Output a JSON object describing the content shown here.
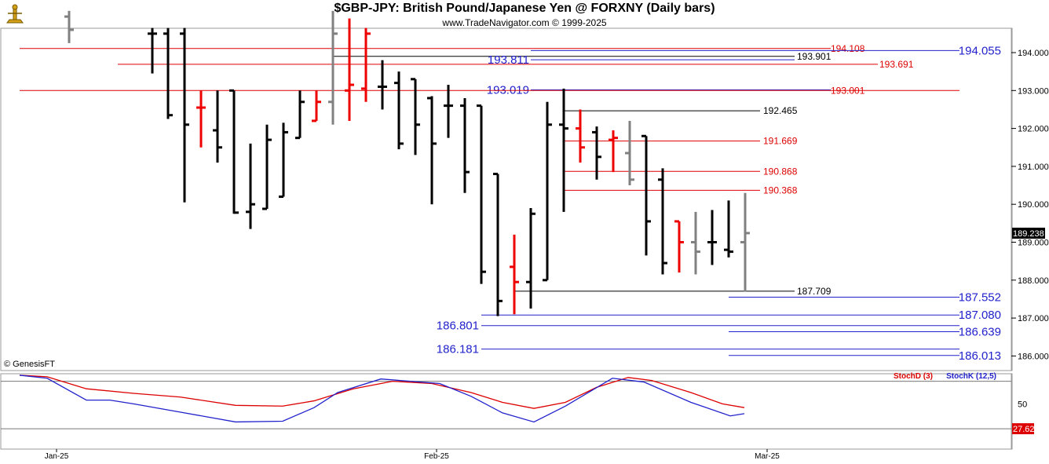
{
  "header": {
    "title": "$GBP-JPY:  British Pound/Japanese Yen @ FORXNY  (Daily bars)",
    "subtitle": "www.TradeNavigator.com © 1999-2025",
    "copyright": "© GenesisFT"
  },
  "colors": {
    "up": "#000000",
    "down": "#ee0000",
    "neutral": "#808080",
    "blue": "#2222cc",
    "red": "#dd0000",
    "black": "#000000",
    "grid": "#888888"
  },
  "chart_data": [
    {
      "type": "bar",
      "subtype": "ohlc",
      "title": "$GBP-JPY:  British Pound/Japanese Yen @ FORXNY  (Daily bars)",
      "ylim": [
        185.6,
        195.1
      ],
      "y_ticks": [
        "194.000",
        "193.000",
        "192.000",
        "191.000",
        "190.000",
        "189.000",
        "188.000",
        "187.000",
        "186.000"
      ],
      "x_ticks": [
        "Jan-25",
        "Feb-25",
        "Mar-25"
      ],
      "last_price": "189.238",
      "bars": [
        {
          "x": 88,
          "o": 194.95,
          "h": 195.1,
          "l": 194.25,
          "c": 194.6,
          "col": "neutral"
        },
        {
          "x": 194,
          "o": 194.5,
          "h": 194.65,
          "l": 193.45,
          "c": 194.5,
          "col": "up"
        },
        {
          "x": 214,
          "o": 194.5,
          "h": 194.65,
          "l": 192.25,
          "c": 192.35,
          "col": "up"
        },
        {
          "x": 235,
          "o": 194.5,
          "h": 194.65,
          "l": 190.05,
          "c": 192.1,
          "col": "up"
        },
        {
          "x": 256,
          "o": 192.55,
          "h": 193.0,
          "l": 191.5,
          "c": 192.55,
          "col": "down"
        },
        {
          "x": 277,
          "o": 191.95,
          "h": 193.0,
          "l": 191.1,
          "c": 191.5,
          "col": "up"
        },
        {
          "x": 298,
          "o": 193.0,
          "h": 193.0,
          "l": 189.75,
          "c": 189.78,
          "col": "up"
        },
        {
          "x": 319,
          "o": 189.8,
          "h": 191.6,
          "l": 189.35,
          "c": 190.0,
          "col": "up"
        },
        {
          "x": 340,
          "o": 189.88,
          "h": 192.1,
          "l": 189.88,
          "c": 191.7,
          "col": "up"
        },
        {
          "x": 361,
          "o": 190.2,
          "h": 192.15,
          "l": 190.2,
          "c": 191.9,
          "col": "up"
        },
        {
          "x": 382,
          "o": 191.75,
          "h": 193.0,
          "l": 191.75,
          "c": 192.7,
          "col": "up"
        },
        {
          "x": 403,
          "o": 192.2,
          "h": 193.0,
          "l": 192.2,
          "c": 192.7,
          "col": "down"
        },
        {
          "x": 424,
          "o": 192.7,
          "h": 195.1,
          "l": 192.1,
          "c": 194.5,
          "col": "neutral"
        },
        {
          "x": 445,
          "o": 193.0,
          "h": 194.9,
          "l": 192.2,
          "c": 193.15,
          "col": "down"
        },
        {
          "x": 466,
          "o": 193.05,
          "h": 194.65,
          "l": 192.7,
          "c": 194.5,
          "col": "down"
        },
        {
          "x": 487,
          "o": 193.1,
          "h": 193.8,
          "l": 192.5,
          "c": 193.1,
          "col": "up"
        },
        {
          "x": 508,
          "o": 193.2,
          "h": 193.5,
          "l": 191.45,
          "c": 191.6,
          "col": "up"
        },
        {
          "x": 529,
          "o": 193.3,
          "h": 193.3,
          "l": 191.3,
          "c": 192.1,
          "col": "up"
        },
        {
          "x": 550,
          "o": 192.8,
          "h": 192.85,
          "l": 190.0,
          "c": 191.6,
          "col": "up"
        },
        {
          "x": 571,
          "o": 192.6,
          "h": 193.15,
          "l": 191.75,
          "c": 192.6,
          "col": "up"
        },
        {
          "x": 592,
          "o": 192.6,
          "h": 192.8,
          "l": 190.3,
          "c": 190.85,
          "col": "up"
        },
        {
          "x": 613,
          "o": 192.6,
          "h": 192.6,
          "l": 187.9,
          "c": 188.22,
          "col": "up"
        },
        {
          "x": 634,
          "o": 190.8,
          "h": 190.8,
          "l": 187.05,
          "c": 187.45,
          "col": "up"
        },
        {
          "x": 655,
          "o": 188.35,
          "h": 189.2,
          "l": 187.1,
          "c": 187.95,
          "col": "down"
        },
        {
          "x": 676,
          "o": 187.95,
          "h": 189.9,
          "l": 187.25,
          "c": 189.75,
          "col": "up"
        },
        {
          "x": 697,
          "o": 188.0,
          "h": 192.7,
          "l": 188.0,
          "c": 192.1,
          "col": "up"
        },
        {
          "x": 718,
          "o": 192.1,
          "h": 193.05,
          "l": 189.8,
          "c": 192.0,
          "col": "up"
        },
        {
          "x": 739,
          "o": 192.0,
          "h": 192.5,
          "l": 191.1,
          "c": 191.5,
          "col": "down"
        },
        {
          "x": 760,
          "o": 191.9,
          "h": 192.05,
          "l": 190.65,
          "c": 191.25,
          "col": "up"
        },
        {
          "x": 781,
          "o": 191.7,
          "h": 191.95,
          "l": 190.85,
          "c": 191.75,
          "col": "down"
        },
        {
          "x": 802,
          "o": 191.35,
          "h": 192.2,
          "l": 190.5,
          "c": 190.65,
          "col": "neutral"
        },
        {
          "x": 823,
          "o": 191.8,
          "h": 191.8,
          "l": 188.65,
          "c": 189.55,
          "col": "up"
        },
        {
          "x": 844,
          "o": 190.65,
          "h": 190.95,
          "l": 188.15,
          "c": 188.45,
          "col": "up"
        },
        {
          "x": 865,
          "o": 189.55,
          "h": 189.55,
          "l": 188.2,
          "c": 189.0,
          "col": "down"
        },
        {
          "x": 886,
          "o": 189.0,
          "h": 189.8,
          "l": 188.15,
          "c": 188.75,
          "col": "neutral"
        },
        {
          "x": 907,
          "o": 189.0,
          "h": 189.85,
          "l": 188.4,
          "c": 189.0,
          "col": "up"
        },
        {
          "x": 928,
          "o": 188.8,
          "h": 190.1,
          "l": 188.6,
          "c": 188.75,
          "col": "up"
        },
        {
          "x": 949,
          "o": 189.0,
          "h": 190.3,
          "l": 187.7,
          "c": 189.24,
          "col": "neutral"
        }
      ],
      "levels": [
        {
          "value": 194.108,
          "label": "194.108",
          "x1": 25,
          "x2": 1058,
          "color": "red",
          "lx": 1058,
          "anchor": "start",
          "size": 12
        },
        {
          "value": 194.055,
          "label": "194.055",
          "x1": 676,
          "x2": 1222,
          "color": "blue",
          "lx": 1277,
          "anchor": "end",
          "size": 15
        },
        {
          "value": 193.901,
          "label": "193.901",
          "x1": 424,
          "x2": 1012,
          "color": "black",
          "lx": 1015,
          "anchor": "start",
          "size": 12
        },
        {
          "value": 193.811,
          "label": "193.811",
          "x1": 676,
          "x2": 1012,
          "color": "blue",
          "lx": 676,
          "anchor": "end",
          "size": 15
        },
        {
          "value": 193.691,
          "label": "193.691",
          "x1": 150,
          "x2": 1118,
          "color": "red",
          "lx": 1120,
          "anchor": "start",
          "size": 12
        },
        {
          "value": 193.019,
          "label": "193.019",
          "x1": 676,
          "x2": 1058,
          "color": "blue",
          "lx": 676,
          "anchor": "end",
          "size": 15
        },
        {
          "value": 193.001,
          "label": "193.001",
          "x1": 25,
          "x2": 1222,
          "color": "red",
          "lx": 1058,
          "anchor": "start",
          "size": 12
        },
        {
          "value": 192.465,
          "label": "192.465",
          "x1": 718,
          "x2": 968,
          "color": "black",
          "lx": 972,
          "anchor": "start",
          "size": 12
        },
        {
          "value": 191.669,
          "label": "191.669",
          "x1": 718,
          "x2": 968,
          "color": "red",
          "lx": 972,
          "anchor": "start",
          "size": 12
        },
        {
          "value": 190.868,
          "label": "190.868",
          "x1": 718,
          "x2": 968,
          "color": "red",
          "lx": 972,
          "anchor": "start",
          "size": 12
        },
        {
          "value": 190.368,
          "label": "190.368",
          "x1": 718,
          "x2": 968,
          "color": "red",
          "lx": 972,
          "anchor": "start",
          "size": 12
        },
        {
          "value": 187.709,
          "label": "187.709",
          "x1": 655,
          "x2": 1012,
          "color": "black",
          "lx": 1015,
          "anchor": "start",
          "size": 12
        },
        {
          "value": 187.552,
          "label": "187.552",
          "x1": 928,
          "x2": 1222,
          "color": "blue",
          "lx": 1277,
          "anchor": "end",
          "size": 15
        },
        {
          "value": 187.08,
          "label": "187.080",
          "x1": 613,
          "x2": 1222,
          "color": "blue",
          "lx": 1277,
          "anchor": "end",
          "size": 15
        },
        {
          "value": 186.801,
          "label": "186.801",
          "x1": 613,
          "x2": 1222,
          "color": "blue",
          "lx": 612,
          "anchor": "end",
          "size": 15
        },
        {
          "value": 186.639,
          "label": "186.639",
          "x1": 928,
          "x2": 1222,
          "color": "blue",
          "lx": 1277,
          "anchor": "end",
          "size": 15
        },
        {
          "value": 186.181,
          "label": "186.181",
          "x1": 613,
          "x2": 1222,
          "color": "blue",
          "lx": 612,
          "anchor": "end",
          "size": 15
        },
        {
          "value": 186.013,
          "label": "186.013",
          "x1": 928,
          "x2": 1222,
          "color": "blue",
          "lx": 1277,
          "anchor": "end",
          "size": 15
        }
      ]
    },
    {
      "type": "line",
      "series": [
        {
          "name": "StochD (3)",
          "color": "red",
          "points": [
            [
              25,
              98
            ],
            [
              60,
              96
            ],
            [
              110,
              80
            ],
            [
              170,
              74
            ],
            [
              230,
              69
            ],
            [
              300,
              58
            ],
            [
              360,
              57
            ],
            [
              400,
              64
            ],
            [
              450,
              80
            ],
            [
              500,
              90
            ],
            [
              550,
              87
            ],
            [
              600,
              75
            ],
            [
              640,
              62
            ],
            [
              680,
              54
            ],
            [
              720,
              62
            ],
            [
              760,
              82
            ],
            [
              800,
              95
            ],
            [
              830,
              91
            ],
            [
              880,
              75
            ],
            [
              920,
              60
            ],
            [
              948,
              55
            ]
          ]
        },
        {
          "name": "StochK (12,5)",
          "color": "blue",
          "points": [
            [
              25,
              98
            ],
            [
              60,
              94
            ],
            [
              110,
              65
            ],
            [
              140,
              65
            ],
            [
              170,
              60
            ],
            [
              230,
              49
            ],
            [
              300,
              36
            ],
            [
              360,
              37
            ],
            [
              400,
              55
            ],
            [
              430,
              75
            ],
            [
              485,
              93
            ],
            [
              510,
              91
            ],
            [
              560,
              87
            ],
            [
              600,
              70
            ],
            [
              640,
              48
            ],
            [
              680,
              36
            ],
            [
              720,
              57
            ],
            [
              780,
              94
            ],
            [
              820,
              89
            ],
            [
              880,
              62
            ],
            [
              930,
              44
            ],
            [
              948,
              47
            ]
          ]
        }
      ],
      "y_ticks": [
        "50"
      ],
      "last_value": "27.62"
    }
  ]
}
